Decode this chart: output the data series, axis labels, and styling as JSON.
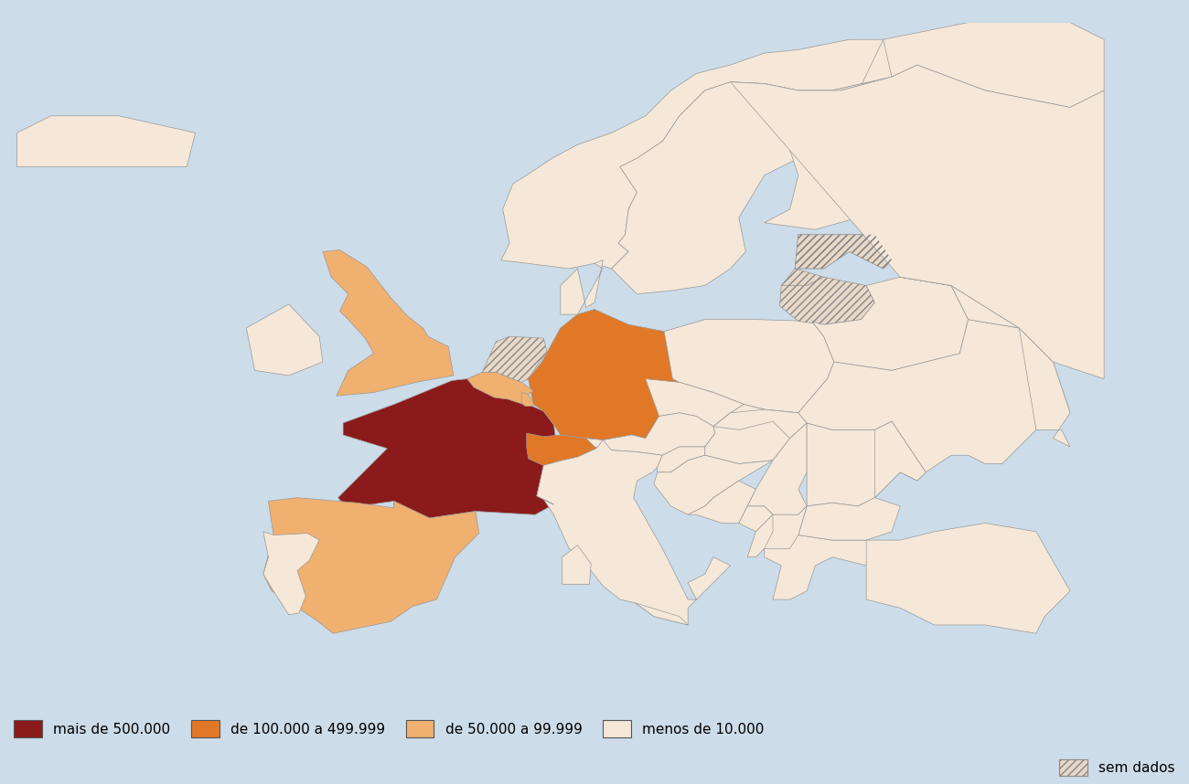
{
  "background_color": "#ccdce8",
  "land_default_color": "#f5e8d8",
  "border_color": "#999999",
  "border_width": 0.5,
  "colors": {
    "mais_500000": "#8b1a1a",
    "100000_499999": "#e07828",
    "50000_99999": "#f0b070",
    "menos_10000": "#f5e8d8",
    "sem_dados_bg": "#e8d8c8",
    "sem_dados_hatch": "#888888"
  },
  "legend_items": [
    {
      "label": "mais de 500.000",
      "color": "#8b1a1a",
      "hatch": null
    },
    {
      "label": "de 100.000 a 499.999",
      "color": "#e07828",
      "hatch": null
    },
    {
      "label": "de 50.000 a 99.999",
      "color": "#f0b070",
      "hatch": null
    },
    {
      "label": "menos de 10.000",
      "color": "#f5e8d8",
      "hatch": null
    },
    {
      "label": "sem dados",
      "color": "#e8d8c8",
      "hatch": "////"
    }
  ],
  "legend_fontsize": 11,
  "figsize": [
    13.0,
    8.58
  ]
}
